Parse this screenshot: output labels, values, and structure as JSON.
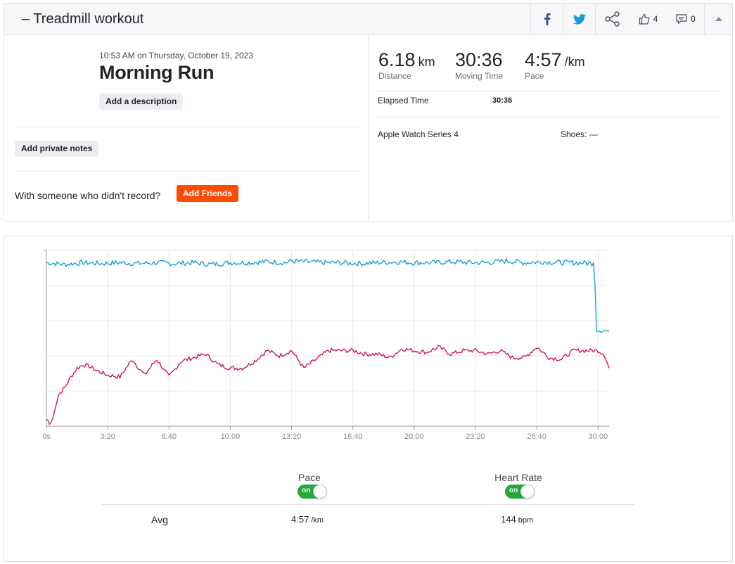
{
  "header": {
    "title": "– Treadmill workout",
    "kudos_count": "4",
    "comment_count": "0"
  },
  "activity": {
    "timestamp": "10:53 AM on Thursday, October 19, 2023",
    "name": "Morning Run",
    "add_description_label": "Add a description",
    "add_private_notes_label": "Add private notes",
    "with_someone_text": "With someone who didn't record?",
    "add_friends_label": "Add Friends"
  },
  "stats": {
    "distance": {
      "value": "6.18",
      "unit": "km",
      "label": "Distance"
    },
    "moving_time": {
      "value": "30:36",
      "label": "Moving Time"
    },
    "pace": {
      "value": "4:57",
      "unit": "/km",
      "label": "Pace"
    },
    "elapsed_label": "Elapsed Time",
    "elapsed_value": "30:36",
    "device": "Apple Watch Series 4",
    "shoes": "Shoes: —"
  },
  "colors": {
    "pace_line": "#1a9fd9",
    "heart_rate_line": "#d5184a",
    "brand_orange": "#fc4c02",
    "toggle_on": "#25a83b"
  },
  "chart_data": {
    "type": "line",
    "x_tick_labels": [
      "0s",
      "3:20",
      "6:40",
      "10:00",
      "13:20",
      "16:40",
      "20:00",
      "23:20",
      "26:40",
      "30:00"
    ],
    "x_tick_seconds": [
      0,
      200,
      400,
      600,
      800,
      1000,
      1200,
      1400,
      1600,
      1800
    ],
    "xlim": [
      0,
      1836
    ],
    "grid": true,
    "series": [
      {
        "name": "Pace",
        "x": [
          0,
          60,
          120,
          180,
          240,
          300,
          360,
          420,
          480,
          540,
          600,
          660,
          720,
          780,
          800,
          840,
          900,
          960,
          1020,
          1080,
          1140,
          1200,
          1260,
          1320,
          1380,
          1440,
          1500,
          1560,
          1620,
          1680,
          1740,
          1780,
          1785,
          1790,
          1795,
          1836
        ],
        "y": [
          0.93,
          0.92,
          0.93,
          0.925,
          0.93,
          0.925,
          0.93,
          0.925,
          0.93,
          0.92,
          0.93,
          0.93,
          0.935,
          0.93,
          0.94,
          0.935,
          0.93,
          0.93,
          0.925,
          0.93,
          0.935,
          0.93,
          0.93,
          0.935,
          0.93,
          0.93,
          0.94,
          0.93,
          0.935,
          0.93,
          0.93,
          0.925,
          0.93,
          0.8,
          0.55,
          0.54
        ]
      },
      {
        "name": "Heart Rate",
        "x": [
          0,
          10,
          20,
          40,
          60,
          80,
          100,
          120,
          140,
          160,
          200,
          240,
          280,
          320,
          360,
          400,
          440,
          480,
          520,
          560,
          600,
          640,
          680,
          720,
          760,
          800,
          840,
          880,
          920,
          960,
          1000,
          1040,
          1080,
          1120,
          1160,
          1200,
          1240,
          1280,
          1320,
          1360,
          1400,
          1440,
          1480,
          1520,
          1560,
          1600,
          1640,
          1680,
          1720,
          1760,
          1800,
          1820,
          1836
        ],
        "y": [
          0.04,
          0.02,
          0.04,
          0.18,
          0.22,
          0.28,
          0.33,
          0.35,
          0.34,
          0.32,
          0.29,
          0.28,
          0.38,
          0.29,
          0.38,
          0.28,
          0.37,
          0.39,
          0.41,
          0.35,
          0.33,
          0.33,
          0.37,
          0.43,
          0.4,
          0.43,
          0.33,
          0.38,
          0.43,
          0.43,
          0.43,
          0.41,
          0.41,
          0.39,
          0.44,
          0.43,
          0.42,
          0.45,
          0.41,
          0.43,
          0.43,
          0.41,
          0.43,
          0.39,
          0.39,
          0.45,
          0.39,
          0.38,
          0.43,
          0.43,
          0.43,
          0.41,
          0.33
        ]
      }
    ]
  },
  "toggles": {
    "pace_label": "Pace",
    "heart_rate_label": "Heart Rate",
    "on_text": "on"
  },
  "averages": {
    "label": "Avg",
    "pace_value": "4:57",
    "pace_unit": "/km",
    "hr_value": "144",
    "hr_unit": "bpm"
  }
}
